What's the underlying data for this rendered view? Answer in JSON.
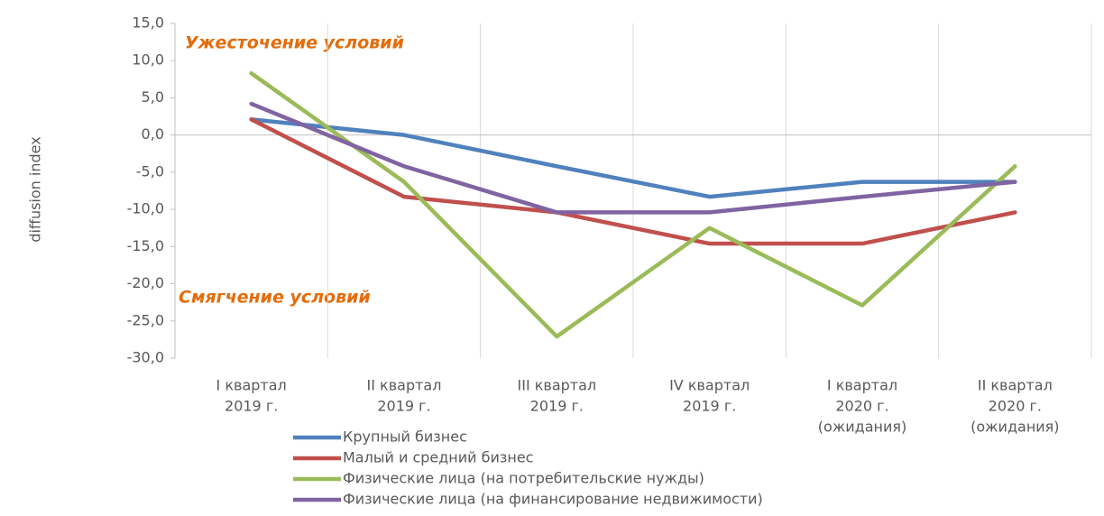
{
  "chart_data": {
    "type": "line",
    "y_label": "diffusion index",
    "annotations": [
      "Ужесточение условий",
      "Смягчение условий"
    ],
    "categories": [
      [
        "I квартал",
        "2019 г."
      ],
      [
        "II квартал",
        "2019 г."
      ],
      [
        "III квартал",
        "2019 г."
      ],
      [
        "IV квартал",
        "2019 г."
      ],
      [
        "I квартал",
        "2020 г.",
        "(ожидания)"
      ],
      [
        "II квартал",
        "2020 г.",
        "(ожидания)"
      ]
    ],
    "series": [
      {
        "name": "Крупный бизнес",
        "color": "#4f81bd",
        "values": [
          2.1,
          0,
          -4.2,
          -8.3,
          -6.3,
          -6.3
        ]
      },
      {
        "name": "Малый и средний бизнес",
        "color": "#c0504d",
        "values": [
          2.1,
          -8.3,
          -10.4,
          -14.6,
          -14.6,
          -10.4
        ]
      },
      {
        "name": "Физические лица (на потребительские нужды)",
        "color": "#9bbb59",
        "values": [
          8.3,
          -6.3,
          -27.1,
          -12.5,
          -22.9,
          -4.2
        ]
      },
      {
        "name": "Физические лица (на финансирование недвижимости)",
        "color": "#8064a2",
        "values": [
          4.2,
          -4.2,
          -10.4,
          -10.4,
          -8.3,
          -6.3
        ]
      }
    ],
    "ylim": [
      -30,
      15
    ],
    "yticks": [
      {
        "value": -30,
        "label": "-30,0"
      },
      {
        "value": -25,
        "label": "-25,0"
      },
      {
        "value": -20,
        "label": "-20,0"
      },
      {
        "value": -15,
        "label": "-15,0"
      },
      {
        "value": -10,
        "label": "-10,0"
      },
      {
        "value": -5,
        "label": "-5,0"
      },
      {
        "value": 0,
        "label": "0,0"
      },
      {
        "value": 5,
        "label": "5,0"
      },
      {
        "value": 10,
        "label": "10,0"
      },
      {
        "value": 15,
        "label": "15,0"
      }
    ],
    "grid": false
  }
}
